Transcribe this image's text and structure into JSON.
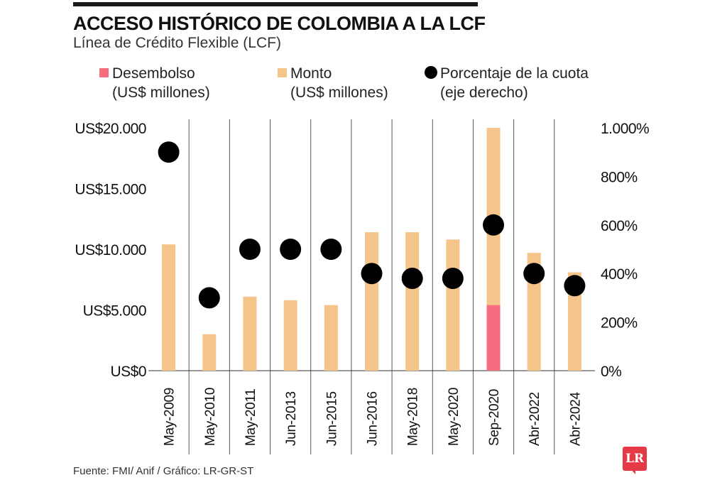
{
  "header": {
    "title": "ACCESO HISTÓRICO DE COLOMBIA A LA LCF",
    "subtitle": "Línea de Crédito Flexible (LCF)"
  },
  "legend": [
    {
      "line1": "Desembolso",
      "line2": "(US$ millones)",
      "color": "#f76d80"
    },
    {
      "line1": "Monto",
      "line2": "(US$ millones)",
      "color": "#f5c48a"
    },
    {
      "line1": "Porcentaje de la cuota",
      "line2": "(eje derecho)",
      "color": "#000000"
    }
  ],
  "chart_data": {
    "type": "bar",
    "categories": [
      "May-2009",
      "May-2010",
      "May-2011",
      "Jun-2013",
      "Jun-2015",
      "Jun-2016",
      "May-2018",
      "May-2020",
      "Sep-2020",
      "Abr-2022",
      "Abr-2024"
    ],
    "series": [
      {
        "name": "Monto (US$ millones)",
        "type": "bar",
        "axis": "left",
        "color": "#f5c48a",
        "values": [
          10400,
          3000,
          6100,
          5800,
          5400,
          11400,
          11400,
          10800,
          20000,
          9700,
          8100
        ]
      },
      {
        "name": "Desembolso (US$ millones)",
        "type": "bar",
        "axis": "left",
        "color": "#f76d80",
        "values": [
          0,
          0,
          0,
          0,
          0,
          0,
          0,
          0,
          5400,
          0,
          0
        ]
      },
      {
        "name": "Porcentaje de la cuota (eje derecho)",
        "type": "scatter",
        "axis": "right",
        "color": "#000000",
        "values": [
          900,
          300,
          500,
          500,
          500,
          400,
          380,
          380,
          600,
          400,
          350
        ]
      }
    ],
    "ylim": [
      0,
      20000
    ],
    "y2lim": [
      0,
      1000
    ],
    "yticks": [
      0,
      5000,
      10000,
      15000,
      20000
    ],
    "yticklabels": [
      "US$0",
      "US$5.000",
      "US$10.000",
      "US$15.000",
      "US$20.000"
    ],
    "y2ticks": [
      0,
      200,
      400,
      600,
      800,
      1000
    ],
    "y2ticklabels": [
      "0%",
      "200%",
      "400%",
      "600%",
      "800%",
      "1.000%"
    ],
    "grid": "vertical separators",
    "legend_position": "top"
  },
  "footer": {
    "source": "Fuente: FMI/ Anif / Gráfico: LR-GR-ST",
    "logo": "LR"
  }
}
